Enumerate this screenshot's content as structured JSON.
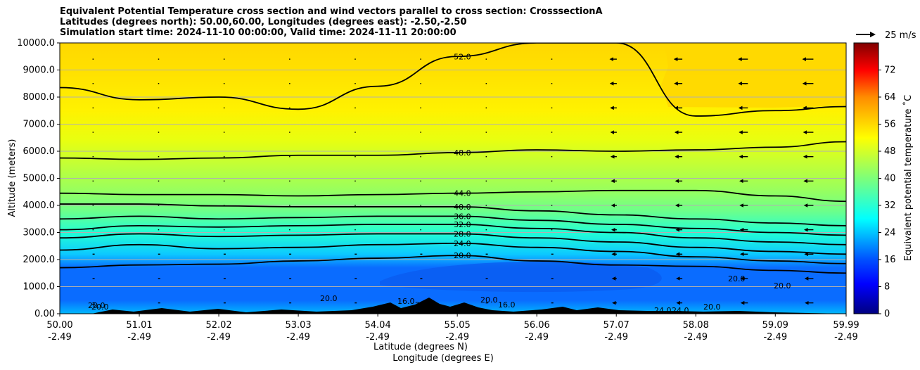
{
  "chart_data": {
    "type": "contour",
    "title_lines": [
      "Equivalent Potential Temperature cross section and wind vectors parallel to cross section: CrosssectionA",
      "Latitudes (degrees north): 50.00,60.00, Longitudes (degrees east): -2.50,-2.50",
      "Simulation start time: 2024-11-10 00:00:00, Valid time: 2024-11-11 20:00:00"
    ],
    "xlabel_lat": "Latitude (degrees N)",
    "xlabel_lon": "Longitude (degrees E)",
    "ylabel": "Altitude (meters)",
    "x_ticks_lat": [
      "50.00",
      "51.01",
      "52.02",
      "53.03",
      "54.04",
      "55.05",
      "56.06",
      "57.07",
      "58.08",
      "59.09",
      "59.99"
    ],
    "x_ticks_lon": [
      "-2.49",
      "-2.49",
      "-2.49",
      "-2.49",
      "-2.49",
      "-2.49",
      "-2.49",
      "-2.49",
      "-2.49",
      "-2.49",
      "-2.49"
    ],
    "x_tick_values": [
      50.0,
      51.01,
      52.02,
      53.03,
      54.04,
      55.05,
      56.06,
      57.07,
      58.08,
      59.09,
      59.99
    ],
    "xlim": [
      50.0,
      59.99
    ],
    "y_ticks": [
      "0.00",
      "1000.0",
      "2000.0",
      "3000.0",
      "4000.0",
      "5000.0",
      "6000.0",
      "7000.0",
      "8000.0",
      "9000.0",
      "10000.0"
    ],
    "y_tick_values": [
      0,
      1000,
      2000,
      3000,
      4000,
      5000,
      6000,
      7000,
      8000,
      9000,
      10000
    ],
    "ylim": [
      0,
      10000
    ],
    "grid": "horizontal",
    "colorbar": {
      "label": "Equivalent potential temperature ˚C",
      "ticks": [
        "0",
        "8",
        "16",
        "24",
        "32",
        "40",
        "48",
        "56",
        "64",
        "72"
      ],
      "tick_values": [
        0,
        8,
        16,
        24,
        32,
        40,
        48,
        56,
        64,
        72
      ],
      "range": [
        0,
        80
      ],
      "colormap": "jet"
    },
    "wind_key": {
      "label": "25 m/s",
      "value": 25
    },
    "contour_levels": [
      {
        "level": 20,
        "label": "20.0",
        "altitude_m": [
          1700,
          1800,
          1830,
          1950,
          2050,
          2150,
          1950,
          1800,
          1750,
          1600,
          1500
        ]
      },
      {
        "level": 24,
        "label": "24.0",
        "altitude_m": [
          2350,
          2550,
          2400,
          2450,
          2550,
          2600,
          2450,
          2300,
          2100,
          1950,
          1850
        ]
      },
      {
        "level": 28,
        "label": "28.0",
        "altitude_m": [
          2800,
          2950,
          2850,
          2900,
          2950,
          2950,
          2800,
          2650,
          2450,
          2300,
          2200
        ]
      },
      {
        "level": 32,
        "label": "32.0",
        "altitude_m": [
          3100,
          3250,
          3200,
          3250,
          3300,
          3300,
          3150,
          3000,
          2800,
          2650,
          2550
        ]
      },
      {
        "level": 36,
        "label": "36.0",
        "altitude_m": [
          3500,
          3600,
          3500,
          3550,
          3600,
          3600,
          3450,
          3300,
          3150,
          3000,
          2900
        ]
      },
      {
        "level": 40,
        "label": "40.0",
        "altitude_m": [
          4050,
          4050,
          3980,
          3950,
          3950,
          3950,
          3800,
          3650,
          3500,
          3350,
          3250
        ]
      },
      {
        "level": 44,
        "label": "44.0",
        "altitude_m": [
          4450,
          4400,
          4400,
          4350,
          4400,
          4450,
          4500,
          4550,
          4550,
          4350,
          4150
        ]
      },
      {
        "level": 48,
        "label": "48.0",
        "altitude_m": [
          5750,
          5700,
          5750,
          5850,
          5850,
          5950,
          6050,
          6000,
          6050,
          6150,
          6350
        ]
      },
      {
        "level": 52,
        "label": "52.0",
        "altitude_m": [
          8350,
          7900,
          8000,
          7550,
          8400,
          9500,
          10000,
          10000,
          7300,
          7500,
          7650
        ]
      }
    ],
    "near_surface_labels": [
      "20.0",
      "20.0",
      "20.0",
      "16.0",
      "16.0",
      "20.0",
      "20.0",
      "20.0",
      "24.0",
      "24.0",
      "20.0",
      "20.0"
    ],
    "wind_direction": "mostly weak, stronger northerly-component (pointing left) winds north of 56.5"
  }
}
